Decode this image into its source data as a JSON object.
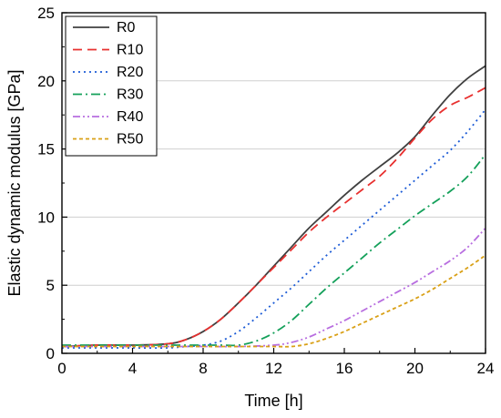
{
  "chart_data": {
    "type": "line",
    "title": "",
    "xlabel": "Time [h]",
    "ylabel": "Elastic dynamic modulus [GPa]",
    "xlim": [
      0,
      24
    ],
    "ylim": [
      0,
      25
    ],
    "xticks": [
      0,
      4,
      8,
      12,
      16,
      20,
      24
    ],
    "yticks": [
      0,
      5,
      10,
      15,
      20,
      25
    ],
    "grid": "horizontal",
    "legend_position": "top-left",
    "series": [
      {
        "name": "R0",
        "color": "#404040",
        "dash": "solid",
        "points": [
          [
            0,
            0.5
          ],
          [
            2,
            0.6
          ],
          [
            4,
            0.6
          ],
          [
            6,
            0.7
          ],
          [
            7,
            1.0
          ],
          [
            8,
            1.6
          ],
          [
            9,
            2.5
          ],
          [
            10,
            3.7
          ],
          [
            11,
            5.0
          ],
          [
            12,
            6.4
          ],
          [
            13,
            7.8
          ],
          [
            14,
            9.2
          ],
          [
            15,
            10.4
          ],
          [
            16,
            11.6
          ],
          [
            17,
            12.7
          ],
          [
            18,
            13.7
          ],
          [
            19,
            14.7
          ],
          [
            20,
            15.9
          ],
          [
            21,
            17.5
          ],
          [
            22,
            19.0
          ],
          [
            23,
            20.2
          ],
          [
            24,
            21.1
          ]
        ]
      },
      {
        "name": "R10",
        "color": "#e8302f",
        "dash": "dashed",
        "points": [
          [
            0,
            0.5
          ],
          [
            2,
            0.6
          ],
          [
            4,
            0.6
          ],
          [
            6,
            0.7
          ],
          [
            7,
            1.0
          ],
          [
            8,
            1.6
          ],
          [
            9,
            2.5
          ],
          [
            10,
            3.7
          ],
          [
            11,
            5.0
          ],
          [
            12,
            6.3
          ],
          [
            13,
            7.6
          ],
          [
            14,
            8.9
          ],
          [
            15,
            10.0
          ],
          [
            16,
            11.0
          ],
          [
            17,
            12.0
          ],
          [
            18,
            13.0
          ],
          [
            19,
            14.3
          ],
          [
            20,
            15.8
          ],
          [
            21,
            17.2
          ],
          [
            22,
            18.2
          ],
          [
            23,
            18.8
          ],
          [
            24,
            19.5
          ]
        ]
      },
      {
        "name": "R20",
        "color": "#1c5bd6",
        "dash": "dotted",
        "points": [
          [
            0,
            0.4
          ],
          [
            2,
            0.4
          ],
          [
            4,
            0.4
          ],
          [
            6,
            0.4
          ],
          [
            7,
            0.5
          ],
          [
            8,
            0.6
          ],
          [
            9,
            0.9
          ],
          [
            10,
            1.6
          ],
          [
            11,
            2.6
          ],
          [
            12,
            3.7
          ],
          [
            13,
            4.8
          ],
          [
            14,
            6.0
          ],
          [
            15,
            7.2
          ],
          [
            16,
            8.3
          ],
          [
            17,
            9.4
          ],
          [
            18,
            10.5
          ],
          [
            19,
            11.6
          ],
          [
            20,
            12.7
          ],
          [
            21,
            13.8
          ],
          [
            22,
            14.9
          ],
          [
            23,
            16.3
          ],
          [
            24,
            17.9
          ]
        ]
      },
      {
        "name": "R30",
        "color": "#14a05a",
        "dash": "dashdot",
        "points": [
          [
            0,
            0.6
          ],
          [
            2,
            0.6
          ],
          [
            4,
            0.6
          ],
          [
            6,
            0.6
          ],
          [
            8,
            0.6
          ],
          [
            9,
            0.6
          ],
          [
            10,
            0.6
          ],
          [
            11,
            0.9
          ],
          [
            12,
            1.5
          ],
          [
            13,
            2.4
          ],
          [
            14,
            3.6
          ],
          [
            15,
            4.8
          ],
          [
            16,
            5.9
          ],
          [
            17,
            7.0
          ],
          [
            18,
            8.1
          ],
          [
            19,
            9.1
          ],
          [
            20,
            10.1
          ],
          [
            21,
            11.0
          ],
          [
            22,
            11.9
          ],
          [
            23,
            13.0
          ],
          [
            24,
            14.6
          ]
        ]
      },
      {
        "name": "R40",
        "color": "#b86ee0",
        "dash": "dashdotdot",
        "points": [
          [
            0,
            0.5
          ],
          [
            2,
            0.5
          ],
          [
            4,
            0.5
          ],
          [
            6,
            0.5
          ],
          [
            8,
            0.5
          ],
          [
            10,
            0.5
          ],
          [
            12,
            0.6
          ],
          [
            13,
            0.8
          ],
          [
            14,
            1.2
          ],
          [
            15,
            1.8
          ],
          [
            16,
            2.4
          ],
          [
            17,
            3.1
          ],
          [
            18,
            3.8
          ],
          [
            19,
            4.5
          ],
          [
            20,
            5.2
          ],
          [
            21,
            6.0
          ],
          [
            22,
            6.8
          ],
          [
            23,
            7.8
          ],
          [
            24,
            9.2
          ]
        ]
      },
      {
        "name": "R50",
        "color": "#d9a016",
        "dash": "shortdash",
        "points": [
          [
            0,
            0.5
          ],
          [
            2,
            0.5
          ],
          [
            4,
            0.5
          ],
          [
            6,
            0.5
          ],
          [
            8,
            0.5
          ],
          [
            10,
            0.5
          ],
          [
            12,
            0.5
          ],
          [
            13,
            0.5
          ],
          [
            14,
            0.7
          ],
          [
            15,
            1.1
          ],
          [
            16,
            1.6
          ],
          [
            17,
            2.2
          ],
          [
            18,
            2.8
          ],
          [
            19,
            3.4
          ],
          [
            20,
            4.0
          ],
          [
            21,
            4.7
          ],
          [
            22,
            5.5
          ],
          [
            23,
            6.3
          ],
          [
            24,
            7.2
          ]
        ]
      }
    ]
  }
}
